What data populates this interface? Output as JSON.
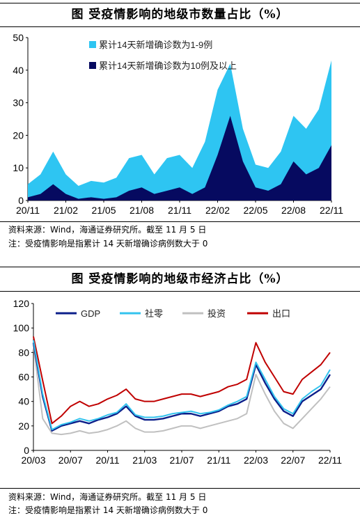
{
  "panel1": {
    "title": "图    受疫情影响的地级市数量占比（%）",
    "source": "资料来源：Wind，海通证券研究所。截至 11 月 5 日",
    "note": "注：受疫情影响是指累计 14 天新增确诊病例数大于 0"
  },
  "panel2": {
    "title": "图    受疫情影响的地级市经济占比（%）",
    "source": "资料来源：Wind，海通证券研究所。截至 11 月 5 日",
    "note": "注：受疫情影响是指累计 14 天新增确诊病例数大于 0"
  },
  "chart_data": [
    {
      "type": "area",
      "stacked": true,
      "title": "受疫情影响的地级市数量占比（%）",
      "ylim": [
        0,
        50
      ],
      "yticks": [
        0,
        10,
        20,
        30,
        40,
        50
      ],
      "xticks": [
        "20/11",
        "21/02",
        "21/05",
        "21/08",
        "21/11",
        "22/02",
        "22/05",
        "22/08",
        "22/11"
      ],
      "x_range": [
        "2020-11",
        "2022-11"
      ],
      "legend_position": "top-right",
      "grid": false,
      "x": [
        "20/11",
        "20/12",
        "21/01",
        "21/02",
        "21/03",
        "21/04",
        "21/05",
        "21/06",
        "21/07",
        "21/08",
        "21/09",
        "21/10",
        "21/11",
        "21/12",
        "22/01",
        "22/02",
        "22/03",
        "22/04",
        "22/05",
        "22/06",
        "22/07",
        "22/08",
        "22/09",
        "22/10",
        "22/11"
      ],
      "series": [
        {
          "name": "累计14天新增确诊数为1-9例",
          "color": "#2ec5f2",
          "values": [
            4,
            6,
            10,
            6,
            4,
            5,
            5,
            6,
            10,
            10,
            6,
            10,
            10,
            8,
            14,
            20,
            16,
            10,
            7,
            7,
            10,
            14,
            14,
            18,
            26
          ]
        },
        {
          "name": "累计14天新增确诊数为10例及以上",
          "color": "#060a60",
          "values": [
            1,
            2,
            5,
            2,
            0.5,
            1,
            0.5,
            1,
            3,
            4,
            2,
            3,
            4,
            2,
            4,
            14,
            26,
            12,
            4,
            3,
            5,
            12,
            8,
            10,
            17
          ]
        }
      ]
    },
    {
      "type": "line",
      "title": "受疫情影响的地级市经济占比（%）",
      "ylim": [
        0,
        120
      ],
      "yticks": [
        0,
        20,
        40,
        60,
        80,
        100,
        120
      ],
      "xticks": [
        "20/03",
        "20/07",
        "20/11",
        "21/03",
        "21/07",
        "21/11",
        "22/03",
        "22/07",
        "22/11"
      ],
      "x_range": [
        "2020-03",
        "2022-11"
      ],
      "legend_position": "top",
      "grid": false,
      "x": [
        "20/03",
        "20/04",
        "20/05",
        "20/06",
        "20/07",
        "20/08",
        "20/09",
        "20/10",
        "20/11",
        "20/12",
        "21/01",
        "21/02",
        "21/03",
        "21/04",
        "21/05",
        "21/06",
        "21/07",
        "21/08",
        "21/09",
        "21/10",
        "21/11",
        "21/12",
        "22/01",
        "22/02",
        "22/03",
        "22/04",
        "22/05",
        "22/06",
        "22/07",
        "22/08",
        "22/09",
        "22/10",
        "22/11"
      ],
      "series": [
        {
          "name": "GDP",
          "color": "#0c1f8a",
          "values": [
            88,
            44,
            16,
            20,
            22,
            24,
            22,
            25,
            27,
            30,
            36,
            28,
            25,
            25,
            26,
            28,
            30,
            30,
            28,
            30,
            32,
            36,
            38,
            42,
            70,
            55,
            42,
            32,
            28,
            40,
            45,
            50,
            62
          ]
        },
        {
          "name": "社零",
          "color": "#33c3ee",
          "values": [
            90,
            46,
            17,
            21,
            23,
            26,
            24,
            26,
            29,
            31,
            38,
            29,
            27,
            27,
            28,
            30,
            31,
            32,
            30,
            31,
            33,
            37,
            40,
            44,
            72,
            58,
            44,
            34,
            30,
            42,
            48,
            53,
            66
          ]
        },
        {
          "name": "投资",
          "color": "#c0c0c0",
          "values": [
            86,
            26,
            14,
            13,
            14,
            16,
            14,
            15,
            17,
            20,
            24,
            18,
            15,
            15,
            16,
            18,
            20,
            20,
            18,
            20,
            22,
            24,
            26,
            30,
            62,
            46,
            32,
            22,
            18,
            26,
            34,
            42,
            52
          ]
        },
        {
          "name": "出口",
          "color": "#c00000",
          "values": [
            93,
            57,
            22,
            28,
            36,
            40,
            36,
            38,
            42,
            45,
            50,
            42,
            40,
            40,
            42,
            44,
            46,
            46,
            44,
            46,
            48,
            52,
            54,
            58,
            88,
            72,
            60,
            48,
            46,
            58,
            64,
            70,
            80
          ]
        }
      ]
    }
  ]
}
